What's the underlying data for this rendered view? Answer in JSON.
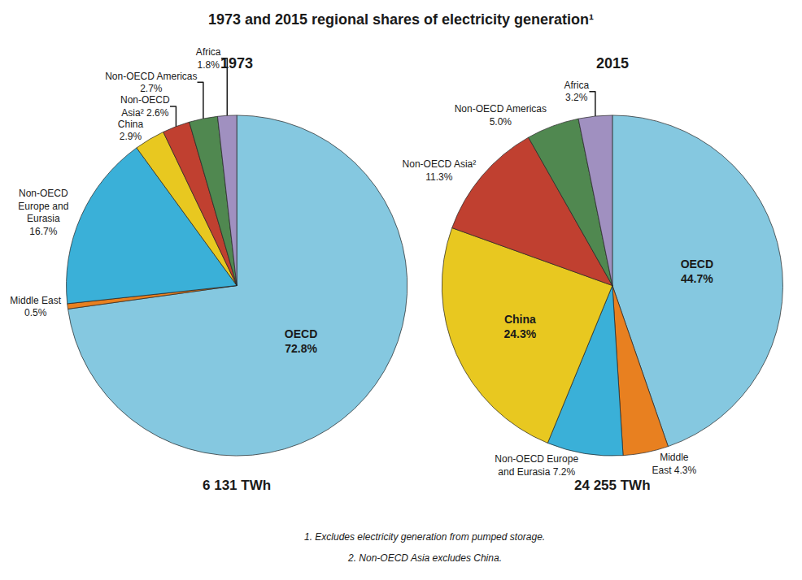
{
  "title": "1973 and 2015 regional shares of electricity generation¹",
  "annotations": [
    "1. Excludes electricity generation from pumped storage.",
    "2. Non-OECD Asia excludes China."
  ],
  "chart_data": [
    {
      "type": "pie",
      "title": "1973",
      "categories": [
        "OECD",
        "Middle East",
        "Non-OECD Europe and Eurasia",
        "China",
        "Non-OECD Asia²",
        "Non-OECD Americas",
        "Africa"
      ],
      "values": [
        72.8,
        0.5,
        16.7,
        2.9,
        2.6,
        2.7,
        1.8
      ],
      "value_labels": [
        "OECD\n72.8%",
        "Middle East\n0.5%",
        "Non-OECD\nEurope and\nEurasia\n16.7%",
        "China\n2.9%",
        "Non-OECD\nAsia² 2.6%",
        "Non-OECD Americas\n2.7%",
        "Africa\n1.8%"
      ],
      "colors": [
        "#85c8e0",
        "#e88020",
        "#3ab0d8",
        "#e8c820",
        "#c04030",
        "#508850",
        "#a090c0"
      ],
      "data_labels": true,
      "annotations": [
        "6 131 TWh"
      ]
    },
    {
      "type": "pie",
      "title": "2015",
      "categories": [
        "OECD",
        "Middle East",
        "Non-OECD Europe and Eurasia",
        "China",
        "Non-OECD Asia²",
        "Non-OECD Americas",
        "Africa"
      ],
      "values": [
        44.7,
        4.3,
        7.2,
        24.3,
        11.3,
        5.0,
        3.2
      ],
      "value_labels": [
        "OECD\n44.7%",
        "Middle\nEast 4.3%",
        "Non-OECD Europe\nand Eurasia 7.2%",
        "China\n24.3%",
        "Non-OECD Asia²\n11.3%",
        "Non-OECD Americas\n5.0%",
        "Africa\n3.2%"
      ],
      "colors": [
        "#85c8e0",
        "#e88020",
        "#3ab0d8",
        "#e8c820",
        "#c04030",
        "#508850",
        "#a090c0"
      ],
      "data_labels": true,
      "annotations": [
        "24 255 TWh"
      ]
    }
  ]
}
